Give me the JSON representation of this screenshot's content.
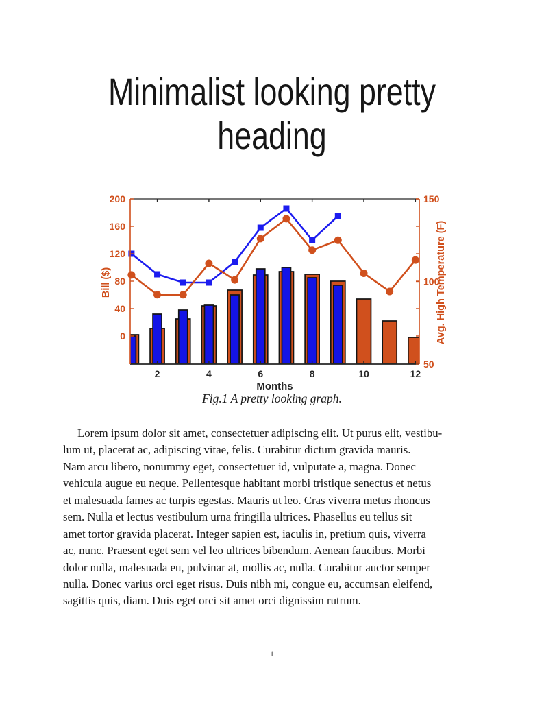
{
  "heading": {
    "line1": "Minimalist looking pretty",
    "line2": "heading"
  },
  "figure": {
    "caption": "Fig.1 A pretty looking graph."
  },
  "body_lines": [
    "Lorem ipsum dolor sit amet, consectetuer adipiscing elit.  Ut purus elit, vestibu-",
    "lum ut, placerat ac, adipiscing vitae, felis.  Curabitur dictum gravida mauris.",
    "Nam arcu libero, nonummy eget, consectetuer id, vulputate a, magna.  Donec",
    "vehicula augue eu neque.  Pellentesque habitant morbi tristique senectus et netus",
    "et malesuada fames ac turpis egestas.  Mauris ut leo.  Cras viverra metus rhoncus",
    "sem.  Nulla et lectus vestibulum urna fringilla ultrices.  Phasellus eu tellus sit",
    "amet tortor gravida placerat.  Integer sapien est, iaculis in, pretium quis, viverra",
    "ac, nunc.  Praesent eget sem vel leo ultrices bibendum.  Aenean faucibus.  Morbi",
    "dolor nulla, malesuada eu, pulvinar at, mollis ac, nulla.  Curabitur auctor semper",
    "nulla.  Donec varius orci eget risus.  Duis nibh mi, congue eu, accumsan eleifend,",
    "sagittis quis, diam.  Duis eget orci sit amet orci dignissim rutrum."
  ],
  "page": {
    "number": "1"
  },
  "chart_data": {
    "type": "bar+line dual-axis",
    "x": [
      1,
      2,
      3,
      4,
      5,
      6,
      7,
      8,
      9,
      10,
      11,
      12
    ],
    "xlabel": "Months",
    "xticks": [
      2,
      4,
      6,
      8,
      10,
      12
    ],
    "xlim": [
      0.95,
      12.15
    ],
    "grid": false,
    "legend": "none",
    "bar_baseline": "plot-bottom",
    "left_axis": {
      "label": "Bill ($)",
      "ticks": [
        0,
        40,
        80,
        120,
        160,
        200
      ],
      "range": [
        -41,
        200
      ],
      "color": "#d0501d"
    },
    "right_axis": {
      "label": "Avg. High Temperature (F)",
      "ticks": [
        50,
        100,
        150
      ],
      "range": [
        50,
        150
      ],
      "color": "#d0501d"
    },
    "x_axis_color": "#262626",
    "series": [
      {
        "name": "temperature-bars",
        "type": "bar",
        "axis": "left",
        "color": "#d0501d",
        "edge": "#141414",
        "values": [
          2,
          11,
          25,
          44,
          67,
          89,
          94,
          90,
          80,
          54,
          22,
          -2
        ]
      },
      {
        "name": "bill-bars",
        "type": "bar",
        "axis": "left",
        "color": "#1414e6",
        "edge": "#141414",
        "values": [
          0,
          32,
          38,
          45,
          60,
          98,
          100,
          85,
          74
        ]
      },
      {
        "name": "bill-line",
        "type": "line",
        "axis": "left",
        "color": "#1c1cef",
        "marker": "square",
        "values": [
          120,
          90,
          78,
          78,
          108,
          158,
          186,
          140,
          175
        ]
      },
      {
        "name": "temperature-line",
        "type": "line",
        "axis": "right",
        "color": "#d0501d",
        "marker": "circle",
        "values": [
          104,
          92,
          92,
          111,
          101,
          126,
          138,
          119,
          125,
          105,
          94,
          113
        ]
      }
    ]
  }
}
